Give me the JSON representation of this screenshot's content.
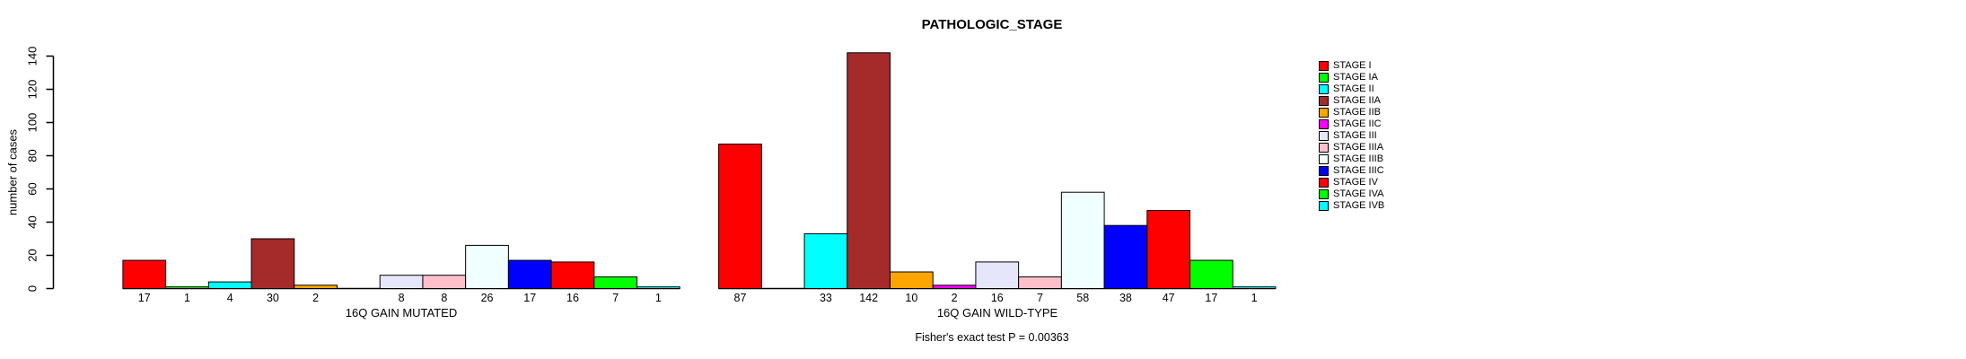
{
  "chart_data": {
    "type": "bar",
    "title": "PATHOLOGIC_STAGE",
    "ylabel": "number of cases",
    "ylim": [
      0,
      140
    ],
    "yticks": [
      0,
      20,
      40,
      60,
      80,
      100,
      120,
      140
    ],
    "grid": false,
    "legend_position": "right",
    "categories": [
      "STAGE I",
      "STAGE IA",
      "STAGE II",
      "STAGE IIA",
      "STAGE IIB",
      "STAGE IIC",
      "STAGE III",
      "STAGE IIIA",
      "STAGE IIIB",
      "STAGE IIIC",
      "STAGE IV",
      "STAGE IVA",
      "STAGE IVB"
    ],
    "colors": [
      "#FF0000",
      "#00FF00",
      "#00FFFF",
      "#A52A2A",
      "#FFA500",
      "#FF00FF",
      "#E6E6FA",
      "#FFC0CB",
      "#F0FFFF",
      "#0000FF",
      "#FF0000",
      "#00FF00",
      "#00FFFF"
    ],
    "series": [
      {
        "name": "16Q GAIN MUTATED",
        "values": [
          17,
          1,
          4,
          30,
          2,
          0,
          8,
          8,
          26,
          17,
          16,
          7,
          1
        ]
      },
      {
        "name": "16Q GAIN WILD-TYPE",
        "values": [
          87,
          0,
          33,
          142,
          10,
          2,
          16,
          7,
          58,
          38,
          47,
          17,
          1
        ]
      }
    ],
    "bar_label_rule": "labels shown under each bar; zero-count bars have no bar and no label",
    "annotation": "Fisher's exact test P = 0.00363",
    "axis_color": "#000000",
    "background": "#FFFFFF"
  }
}
